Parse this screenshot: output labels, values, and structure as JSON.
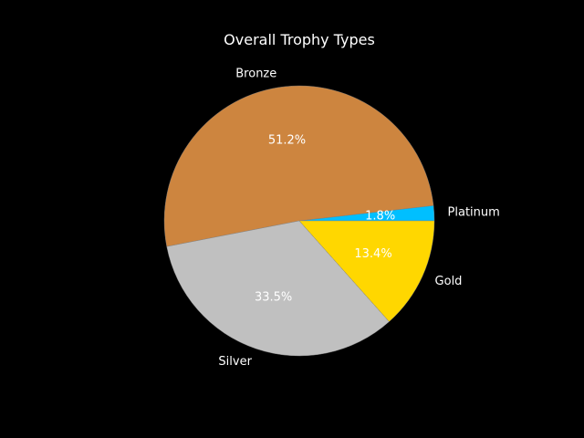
{
  "chart_data": {
    "type": "pie",
    "title": "Overall Trophy Types",
    "slices": [
      {
        "label": "Platinum",
        "value": 1.8,
        "pct_label": "1.8%",
        "color": "#00bfff"
      },
      {
        "label": "Bronze",
        "value": 51.2,
        "pct_label": "51.2%",
        "color": "#cd853f"
      },
      {
        "label": "Silver",
        "value": 33.5,
        "pct_label": "33.5%",
        "color": "#c0c0c0"
      },
      {
        "label": "Gold",
        "value": 13.4,
        "pct_label": "13.4%",
        "color": "#ffd700"
      }
    ],
    "background": "#000000",
    "text_color": "#ffffff",
    "edge_color": "#808080"
  }
}
